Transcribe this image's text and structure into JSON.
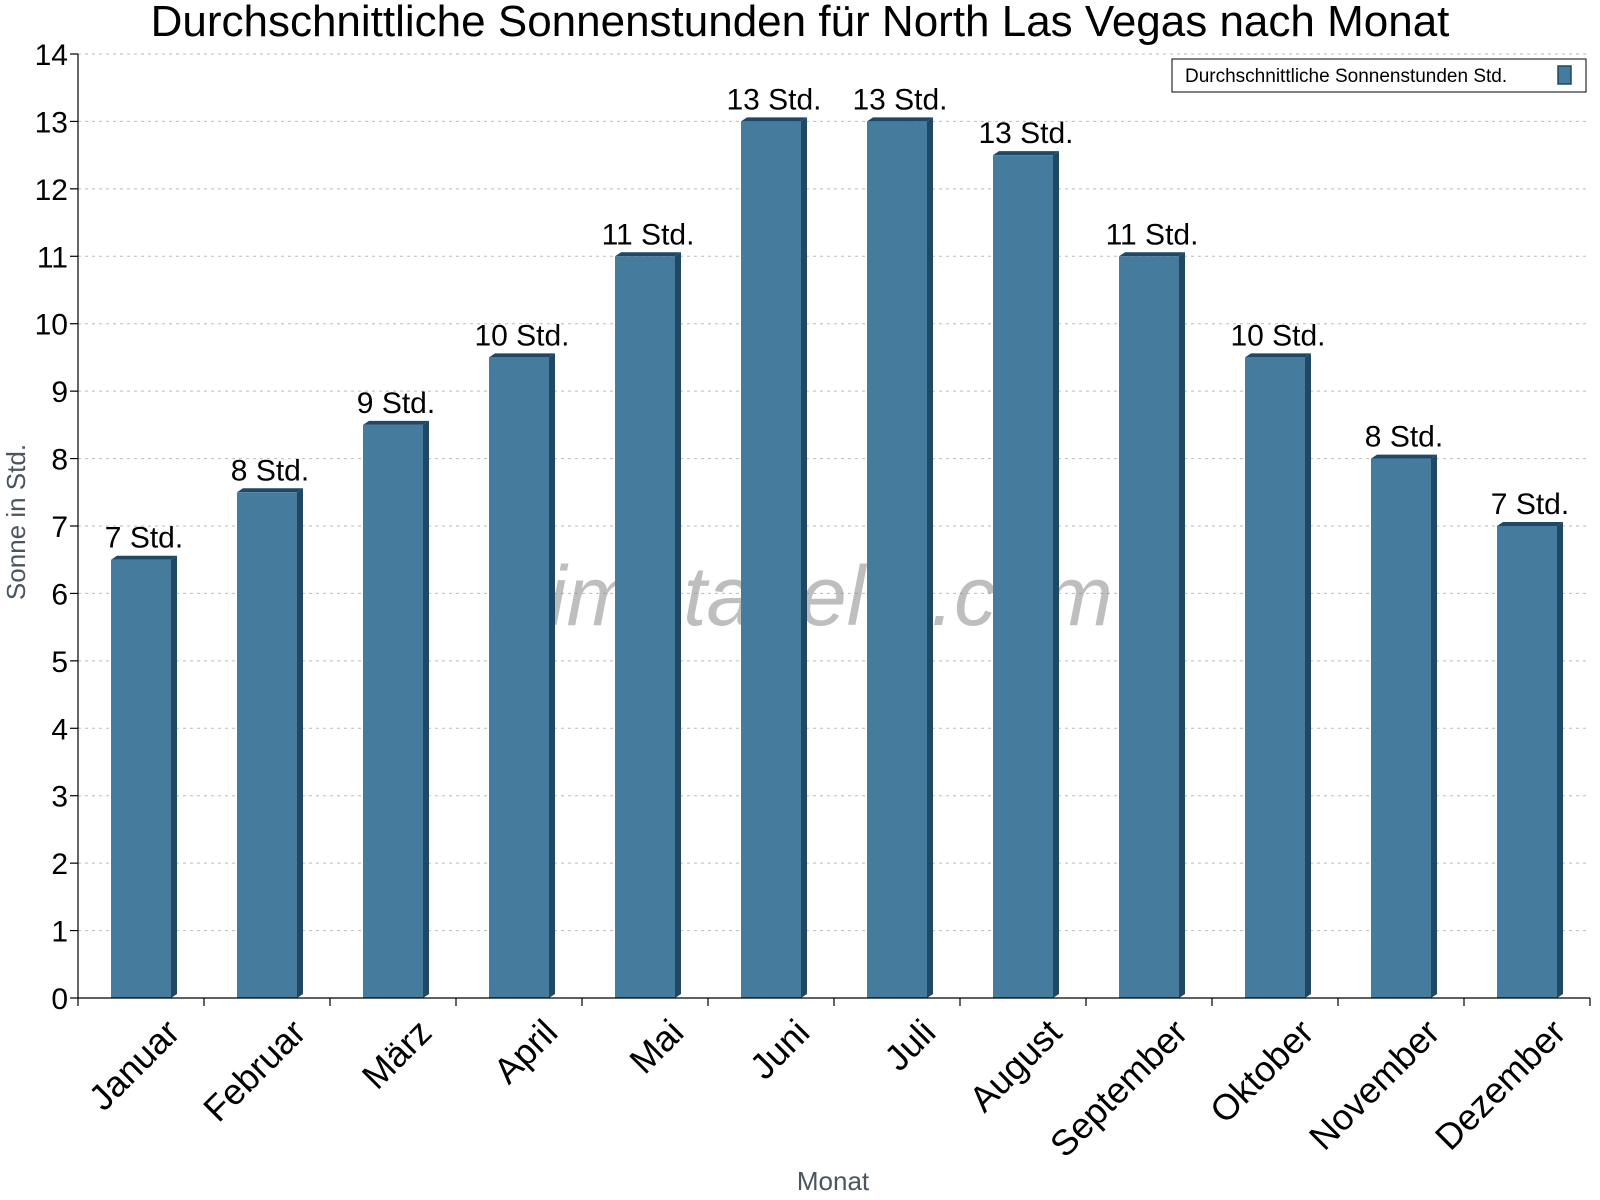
{
  "chart_data": {
    "type": "bar",
    "title": "Durchschnittliche Sonnenstunden für North Las Vegas nach Monat",
    "xlabel": "Monat",
    "ylabel": "Sonne in Std.",
    "ylim": [
      0,
      14
    ],
    "yticks": [
      0,
      1,
      2,
      3,
      4,
      5,
      6,
      7,
      8,
      9,
      10,
      11,
      12,
      13,
      14
    ],
    "grid": true,
    "legend_position": "top-right",
    "categories": [
      "Januar",
      "Februar",
      "März",
      "April",
      "Mai",
      "Juni",
      "Juli",
      "August",
      "September",
      "Oktober",
      "November",
      "Dezember"
    ],
    "series": [
      {
        "name": "Durchschnittliche Sonnenstunden Std.",
        "color": "#457b9d",
        "values": [
          6.5,
          7.5,
          8.5,
          9.5,
          11,
          13,
          13,
          12.5,
          11,
          9.5,
          8,
          7
        ],
        "data_labels": [
          "7 Std.",
          "8 Std.",
          "9 Std.",
          "10 Std.",
          "11 Std.",
          "13 Std.",
          "13 Std.",
          "13 Std.",
          "11 Std.",
          "10 Std.",
          "8 Std.",
          "7 Std."
        ]
      }
    ]
  },
  "watermark": "klimatabelle.com"
}
